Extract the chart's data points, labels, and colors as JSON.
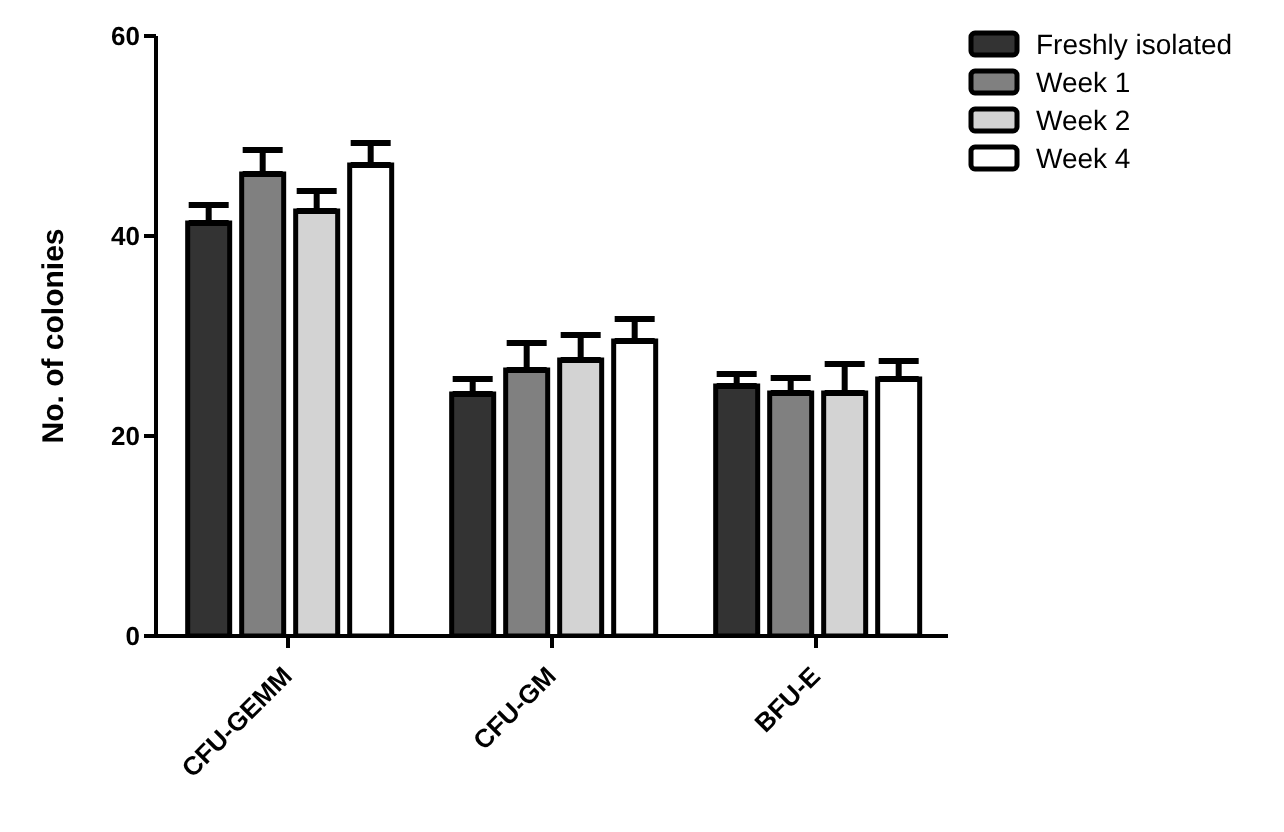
{
  "chart_data": {
    "type": "bar",
    "ylabel": "No. of colonies",
    "categories": [
      "CFU-GEMM",
      "CFU-GM",
      "BFU-E"
    ],
    "series": [
      {
        "name": "Freshly isolated",
        "color": "#333333",
        "values": [
          41.3,
          24.2,
          25.0
        ],
        "errors": [
          [
            41.3,
            43.1
          ],
          [
            24.2,
            25.7
          ],
          [
            25.0,
            26.2
          ]
        ]
      },
      {
        "name": "Week 1",
        "color": "#808080",
        "values": [
          46.2,
          26.6,
          24.3
        ],
        "errors": [
          [
            46.2,
            48.6
          ],
          [
            26.6,
            29.3
          ],
          [
            24.3,
            25.8
          ]
        ]
      },
      {
        "name": "Week 2",
        "color": "#d3d3d3",
        "values": [
          42.5,
          27.6,
          24.3
        ],
        "errors": [
          [
            42.5,
            44.5
          ],
          [
            27.6,
            30.1
          ],
          [
            24.3,
            27.2
          ]
        ]
      },
      {
        "name": "Week 4",
        "color": "#ffffff",
        "values": [
          47.1,
          29.5,
          25.7
        ],
        "errors": [
          [
            47.1,
            49.3
          ],
          [
            29.5,
            31.7
          ],
          [
            25.7,
            27.5
          ]
        ]
      }
    ],
    "ylim": [
      0,
      60
    ],
    "yticks": [
      0,
      20,
      40,
      60
    ],
    "grid": false,
    "legend": "top right"
  }
}
